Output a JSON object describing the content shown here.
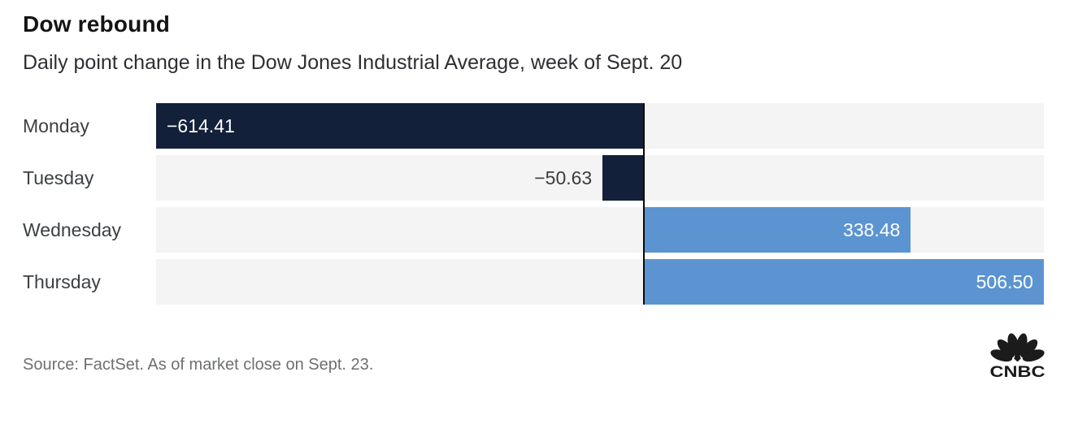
{
  "header": {
    "title": "Dow rebound",
    "subtitle": "Daily point change in the Dow Jones Industrial Average, week of Sept. 20"
  },
  "chart_data": {
    "type": "bar",
    "orientation": "horizontal",
    "title": "Dow rebound",
    "subtitle": "Daily point change in the Dow Jones Industrial Average, week of Sept. 20",
    "categories": [
      "Monday",
      "Tuesday",
      "Wednesday",
      "Thursday"
    ],
    "values": [
      -614.41,
      -50.63,
      338.48,
      506.5
    ],
    "value_labels": [
      "−614.41",
      "−50.63",
      "338.48",
      "506.50"
    ],
    "xlabel": "",
    "ylabel": "",
    "xlim": [
      -614.41,
      506.5
    ],
    "grid": false,
    "legend": false,
    "colors": {
      "negative": "#132039",
      "positive": "#5b94d1",
      "track": "#f4f4f4",
      "zero_line": "#0a0a0a"
    }
  },
  "footer": {
    "source": "Source: FactSet. As of market close on Sept. 23.",
    "logo": "CNBC"
  }
}
